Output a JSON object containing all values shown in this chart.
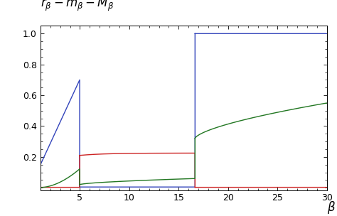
{
  "title": "$r_{\\beta}-m_{\\beta}-M_{\\beta}$",
  "xlabel": "$\\beta$",
  "xlim": [
    1,
    30
  ],
  "ylim": [
    -0.015,
    1.05
  ],
  "xticks": [
    5,
    10,
    15,
    20,
    25,
    30
  ],
  "yticks": [
    0.2,
    0.4,
    0.6,
    0.8,
    1.0
  ],
  "blue_color": "#3344bb",
  "red_color": "#cc2222",
  "green_color": "#227722",
  "transition1": 4.97,
  "transition2": 16.65,
  "figsize": [
    4.74,
    3.04
  ],
  "dpi": 100
}
